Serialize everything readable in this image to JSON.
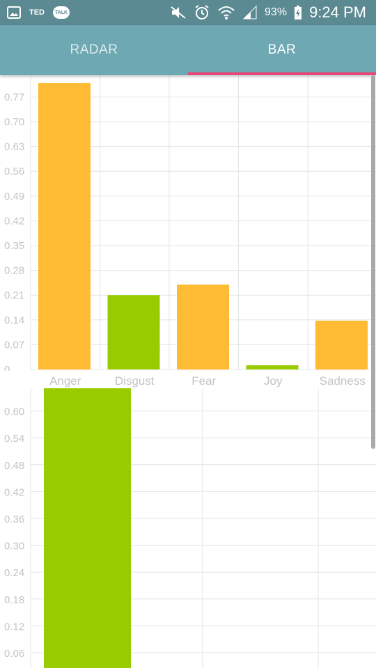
{
  "status_bar": {
    "left_items": [
      "TED",
      "TALK"
    ],
    "battery": "93%",
    "time": "9:24 PM",
    "icons": [
      "gallery-icon",
      "talk-icon",
      "mute-icon",
      "alarm-icon",
      "wifi-icon",
      "signal-icon",
      "battery-charging-icon"
    ]
  },
  "tabs": [
    {
      "label": "RADAR",
      "selected": false
    },
    {
      "label": "BAR",
      "selected": true
    }
  ],
  "colors": {
    "status_bar": "#5b8a93",
    "tab_bar": "#6ea8b2",
    "tab_indicator": "#e8457a",
    "bar_orange": "#ffbb33",
    "bar_green": "#99cc00",
    "grid": "#e4e4e4",
    "axis_text": "#c4c4c4"
  },
  "chart_data": [
    {
      "type": "bar",
      "categories": [
        "Anger",
        "Disgust",
        "Fear",
        "Joy",
        "Sadness"
      ],
      "values": [
        0.81,
        0.21,
        0.24,
        0.012,
        0.138
      ],
      "colors": [
        "#ffbb33",
        "#99cc00",
        "#ffbb33",
        "#99cc00",
        "#ffbb33"
      ],
      "y_ticks": [
        "0",
        "0.07",
        "0.14",
        "0.21",
        "0.28",
        "0.35",
        "0.42",
        "0.49",
        "0.56",
        "0.63",
        "0.70",
        "0.77"
      ],
      "ylim": [
        0,
        0.81
      ],
      "grid": true,
      "legend": false
    },
    {
      "type": "bar",
      "categories": [
        ""
      ],
      "values": [
        0.66
      ],
      "colors": [
        "#99cc00"
      ],
      "y_ticks": [
        "0.06",
        "0.12",
        "0.18",
        "0.24",
        "0.30",
        "0.36",
        "0.42",
        "0.48",
        "0.54",
        "0.60"
      ],
      "ylim": [
        0,
        0.66
      ],
      "grid": true,
      "legend": false
    }
  ]
}
